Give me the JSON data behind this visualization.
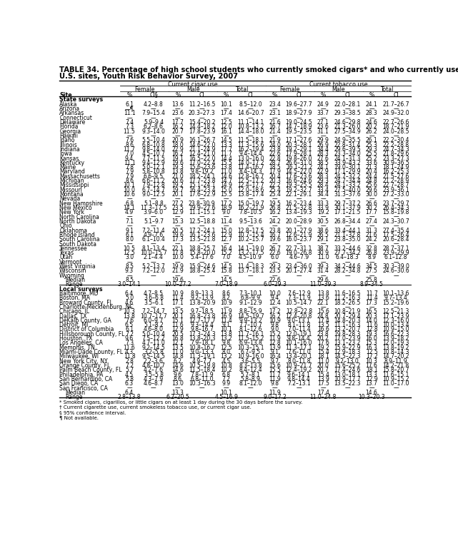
{
  "title_line1": "TABLE 34. Percentage of high school students who currently smoked cigars* and who currently used tobacco,† by sex — selected",
  "title_line2": "U.S. sites, Youth Risk Behavior Survey, 2007",
  "col_headers": {
    "cigar": "Current cigar use",
    "tobacco": "Current tobacco use"
  },
  "sub_headers": [
    "Female",
    "Male",
    "Total",
    "Female",
    "Male",
    "Total"
  ],
  "col_labels": [
    "Site",
    "%",
    "CI§",
    "%",
    "CI",
    "%",
    "CI",
    "%",
    "CI",
    "%",
    "CI",
    "%",
    "CI"
  ],
  "sections": [
    {
      "name": "State surveys",
      "rows": [
        [
          "Alaska",
          "6.1",
          "4.2–8.8",
          "13.6",
          "11.2–16.5",
          "10.1",
          "8.5–12.0",
          "23.4",
          "19.6–27.7",
          "24.9",
          "22.0–28.1",
          "24.1",
          "21.7–26.7"
        ],
        [
          "Arizona",
          "—¶",
          "—",
          "—",
          "—",
          "—",
          "—",
          "—",
          "—",
          "—",
          "—",
          "—",
          "—"
        ],
        [
          "Arkansas",
          "11.1",
          "7.9–15.4",
          "23.6",
          "20.3–27.3",
          "17.4",
          "14.6–20.7",
          "23.1",
          "18.9–27.9",
          "33.7",
          "29.3–38.5",
          "28.3",
          "24.9–32.0"
        ],
        [
          "Connecticut",
          "—",
          "—",
          "—",
          "—",
          "—",
          "—",
          "—",
          "—",
          "—",
          "—",
          "—",
          "—"
        ],
        [
          "Delaware",
          "7.4",
          "5.9–9.4",
          "17.7",
          "15.4–20.2",
          "12.5",
          "11.1–14.1",
          "21.6",
          "19.0–24.5",
          "27.1",
          "24.6–29.8",
          "24.6",
          "22.7–26.6"
        ],
        [
          "Florida",
          "7.3",
          "6.2–8.6",
          "16.2",
          "14.4–18.2",
          "12.0",
          "10.8–13.2",
          "16.7",
          "14.7–18.9",
          "23.6",
          "21.3–26.0",
          "20.2",
          "18.7–21.9"
        ],
        [
          "Georgia",
          "11.5",
          "9.3–14.0",
          "20.7",
          "17.8–23.9",
          "16.1",
          "14.4–18.0",
          "21.4",
          "19.5–23.5",
          "31.1",
          "27.5–34.9",
          "26.2",
          "24.0–28.5"
        ],
        [
          "Hawaii",
          "—",
          "—",
          "—",
          "—",
          "—",
          "—",
          "—",
          "—",
          "—",
          "—",
          "—",
          "—"
        ],
        [
          "Idaho",
          "7.6",
          "5.5–10.4",
          "20.9",
          "16.1–26.7",
          "14.5",
          "11.5–18.1",
          "21.9",
          "17.1–27.6",
          "29.9",
          "24.9–35.5",
          "26.1",
          "22.2–30.4"
        ],
        [
          "Illinois",
          "8.6",
          "6.8–10.8",
          "18.0",
          "14.6–22.0",
          "13.3",
          "11.3–15.6",
          "24.0",
          "20.3–28.1",
          "26.9",
          "22.8–31.4",
          "25.3",
          "22.2–28.8"
        ],
        [
          "Indiana",
          "11.7",
          "9.8–14.0",
          "22.9",
          "21.1–24.9",
          "17.7",
          "16.2–19.4",
          "23.8",
          "19.2–29.1",
          "34.4",
          "29.6–39.5",
          "29.3",
          "24.7–34.3"
        ],
        [
          "Iowa",
          "7.0",
          "4.5–10.7",
          "16.2",
          "12.4–21.0",
          "11.7",
          "9.4–14.4",
          "22.6",
          "17.9–28.1",
          "28.3",
          "23.3–34.0",
          "25.5",
          "21.8–29.6"
        ],
        [
          "Kansas",
          "9.4",
          "7.7–11.5",
          "19.1",
          "16.5–22.0",
          "14.4",
          "13.0–16.0",
          "22.8",
          "19.8–26.0",
          "27.6",
          "24.1–31.3",
          "25.2",
          "23.3–27.3"
        ],
        [
          "Kentucky",
          "11.1",
          "9.4–12.9",
          "19.6",
          "17.0–22.4",
          "15.5",
          "14.0–17.2",
          "28.7",
          "26.6–31.0",
          "38.5",
          "33.9–43.2",
          "33.6",
          "30.9–36.5"
        ],
        [
          "Maine",
          "7.8",
          "5.0–12.1",
          "19.3",
          "15.6–23.6",
          "13.8",
          "11.4–16.7",
          "18.5",
          "16.1–21.2",
          "24.1",
          "19.0–30.1",
          "21.3",
          "18.1–24.9"
        ],
        [
          "Maryland",
          "7.9",
          "5.8–10.8",
          "13.8",
          "9.8–19.2",
          "11.0",
          "8.4–14.3",
          "17.9",
          "14.5–22.0",
          "22.9",
          "17.1–29.9",
          "20.4",
          "16.2–25.3"
        ],
        [
          "Massachusetts",
          "7.9",
          "6.6–9.5",
          "21.0",
          "18.2–24.1",
          "14.6",
          "12.8–16.7",
          "20.4",
          "17.6–23.6",
          "28.3",
          "24.7–32.2",
          "24.4",
          "21.5–27.6"
        ],
        [
          "Michigan",
          "8.6",
          "6.6–11.2",
          "20.6",
          "17.7–23.8",
          "14.7",
          "12.5–17.2",
          "20.3",
          "16.6–24.6",
          "29.3",
          "24.7–34.4",
          "24.8",
          "21.2–28.9"
        ],
        [
          "Mississippi",
          "10.1",
          "7.9–12.8",
          "19.2",
          "15.1–24.1",
          "14.9",
          "12.4–17.7",
          "22.2",
          "19.3–25.5",
          "28.4",
          "24.1–33.2",
          "25.6",
          "22.7–28.7"
        ],
        [
          "Missouri",
          "10.0",
          "6.7–14.7",
          "19.7",
          "16.4–23.4",
          "15.0",
          "12.0–18.6",
          "25.4",
          "19.2–32.7",
          "33.4",
          "27.5–40.0",
          "29.6",
          "23.9–36.1"
        ],
        [
          "Montana",
          "10.6",
          "9.0–12.5",
          "20.1",
          "17.6–22.9",
          "15.5",
          "13.8–17.4",
          "25.4",
          "22.1–29.1",
          "34.4",
          "31.3–37.6",
          "30.0",
          "27.2–33.0"
        ],
        [
          "Nevada",
          "—",
          "—",
          "—",
          "—",
          "—",
          "—",
          "—",
          "—",
          "—",
          "—",
          "—",
          "—"
        ],
        [
          "New Hampshire",
          "6.8",
          "5.1–8.8",
          "27.2",
          "23.8–30.9",
          "17.2",
          "15.0–19.7",
          "19.5",
          "16.2–23.4",
          "33.3",
          "29.7–37.2",
          "26.6",
          "23.7–29.7"
        ],
        [
          "New Mexico",
          "14.1",
          "11.3–17.5",
          "23.5",
          "19.9–27.6",
          "18.9",
          "16.2–21.9",
          "26.8",
          "21.5–32.8",
          "33.9",
          "30.1–37.9",
          "30.2",
          "26.4–34.3"
        ],
        [
          "New York",
          "4.9",
          "3.9–6.0",
          "12.9",
          "11.1–15.1",
          "9.0",
          "7.8–10.5",
          "16.2",
          "13.4–19.3",
          "19.2",
          "17.1–21.5",
          "17.7",
          "15.8–19.8"
        ],
        [
          "North Carolina",
          "—",
          "—",
          "—",
          "—",
          "—",
          "—",
          "—",
          "—",
          "—",
          "—",
          "—",
          "—"
        ],
        [
          "North Dakota",
          "7.1",
          "5.1–9.7",
          "15.3",
          "12.5–18.8",
          "11.4",
          "9.5–13.6",
          "24.2",
          "20.0–28.9",
          "30.5",
          "26.8–34.4",
          "27.4",
          "24.3–30.7"
        ],
        [
          "Ohio",
          "—",
          "—",
          "—",
          "—",
          "—",
          "—",
          "—",
          "—",
          "—",
          "—",
          "—",
          "—"
        ],
        [
          "Oklahoma",
          "9.1",
          "7.2–11.4",
          "20.5",
          "17.2–24.1",
          "15.0",
          "12.8–17.5",
          "23.8",
          "20.1–27.9",
          "38.6",
          "33.4–44.1",
          "31.3",
          "27.4–35.4"
        ],
        [
          "Rhode Island",
          "6.1",
          "4.9–7.6",
          "19.6",
          "16.1–23.6",
          "12.9",
          "10.7–15.4",
          "16.7",
          "12.6–21.9",
          "26.5",
          "21.1–32.8",
          "21.6",
          "17.5–26.4"
        ],
        [
          "South Carolina",
          "8.0",
          "6.1–10.4",
          "17.3",
          "13.5–21.8",
          "12.7",
          "10.2–15.7",
          "19.6",
          "16.0–23.7",
          "29.1",
          "23.8–35.0",
          "24.2",
          "20.6–28.4"
        ],
        [
          "South Dakota",
          "—",
          "—",
          "—",
          "—",
          "—",
          "—",
          "—",
          "—",
          "—",
          "—",
          "—",
          "—"
        ],
        [
          "Tennessee",
          "10.5",
          "8.1–13.4",
          "22.1",
          "18.8–25.7",
          "16.4",
          "14.1–19.0",
          "26.7",
          "22.7–31.1",
          "38.7",
          "33.2–44.6",
          "32.8",
          "28.7–37.1"
        ],
        [
          "Texas",
          "12.5",
          "10.0–15.7",
          "17.8",
          "15.8–20.0",
          "15.2",
          "13.2–17.5",
          "22.6",
          "19.0–26.8",
          "30.9",
          "27.7–34.2",
          "26.8",
          "23.9–29.9"
        ],
        [
          "Utah",
          "3.0",
          "2.1–4.4",
          "10.0",
          "5.4–17.6",
          "7.0",
          "4.5–10.9",
          "6.0",
          "4.6–7.9",
          "11.0",
          "6.4–18.3",
          "8.9",
          "6.1–12.8"
        ],
        [
          "Vermont",
          "—",
          "—",
          "—",
          "—",
          "—",
          "—",
          "—",
          "—",
          "—",
          "—",
          "—",
          "—"
        ],
        [
          "West Virginia",
          "8.5",
          "5.2–13.7",
          "19.9",
          "15.9–24.6",
          "14.5",
          "11.4–18.3",
          "29.3",
          "23.4–36.0",
          "39.3",
          "34.2–44.6",
          "34.5",
          "30.3–39.0"
        ],
        [
          "Wisconsin",
          "9.3",
          "7.2–12.0",
          "21.9",
          "18.8–25.4",
          "15.8",
          "13.7–18.1",
          "23.5",
          "20.1–27.4",
          "31.4",
          "28.2–34.8",
          "27.5",
          "24.6–30.6"
        ],
        [
          "Wyoming",
          "—",
          "—",
          "—",
          "—",
          "—",
          "—",
          "—",
          "—",
          "—",
          "—",
          "—",
          "—"
        ],
        [
          "Median",
          "8.5",
          "",
          "19.6",
          "",
          "14.5",
          "",
          "22.6",
          "",
          "29.6",
          "",
          "25.8",
          ""
        ],
        [
          "Range",
          "3.0–14.1",
          "",
          "10.0–27.2",
          "",
          "7.0–18.9",
          "",
          "6.0–29.3",
          "",
          "11.0–39.3",
          "",
          "8.9–34.5",
          ""
        ]
      ]
    },
    {
      "name": "Local surveys",
      "rows": [
        [
          "Baltimore, MD",
          "6.4",
          "4.7–8.5",
          "10.9",
          "8.9–13.3",
          "8.6",
          "7.3–10.1",
          "10.0",
          "7.6–12.9",
          "13.8",
          "11.6–16.5",
          "11.7",
          "10.1–13.6"
        ],
        [
          "Boston, MA",
          "5.0",
          "3.6–6.8",
          "11.4",
          "9.2–13.9",
          "8.2",
          "6.8–9.9",
          "9.4",
          "7.3–11.9",
          "13.6",
          "11.2–16.3",
          "11.4",
          "9.7–13.4"
        ],
        [
          "Broward County, FL",
          "4.6",
          "3.5–6.1",
          "17.1",
          "13.8–20.9",
          "10.9",
          "9.1–12.9",
          "12.4",
          "10.5–14.7",
          "22.1",
          "18.2–26.5",
          "17.3",
          "15.2–19.6"
        ],
        [
          "Charlotte-Mecklenburg, NC",
          "—",
          "—",
          "—",
          "—",
          "—",
          "—",
          "—",
          "—",
          "—",
          "—",
          "—",
          "—"
        ],
        [
          "Chicago, IL",
          "10.3",
          "7.2–14.7",
          "13.5",
          "9.7–18.5",
          "11.9",
          "8.8–15.9",
          "17.2",
          "12.8–22.8",
          "15.6",
          "10.8–21.9",
          "16.5",
          "12.5–21.3"
        ],
        [
          "Dallas, TX",
          "13.8",
          "10.7–17.7",
          "20.1",
          "16.8–23.8",
          "16.9",
          "14.5–19.7",
          "16.2",
          "12.4–20.8",
          "24.8",
          "20.7–29.4",
          "20.3",
          "17.1–23.9"
        ],
        [
          "DeKalb County, GA",
          "7.6",
          "6.0–9.7",
          "15.1",
          "12.7–17.7",
          "11.4",
          "9.9–13.2",
          "10.9",
          "9.0–13.1",
          "17.4",
          "14.8–20.3",
          "14.0",
          "12.3–16.0"
        ],
        [
          "Detroit, MI",
          "6.5",
          "5.1–8.2",
          "11.6",
          "9.3–14.4",
          "9.1",
          "7.7–10.7",
          "9.8",
          "8.1–11.8",
          "13.5",
          "11.1–16.3",
          "11.6",
          "10.0–13.4"
        ],
        [
          "District of Columbia",
          "6.1",
          "4.6–8.0",
          "12.9",
          "9.8–16.7",
          "10.1",
          "8.1–12.6",
          "9.0",
          "7.0–11.4",
          "16.6",
          "13.2–20.7",
          "12.8",
          "10.9–15.0"
        ],
        [
          "Hillsborough County, FL",
          "7.2",
          "5.0–10.4",
          "20.5",
          "17.3–24.3",
          "13.8",
          "11.7–16.1",
          "15.2",
          "12.0–19.1",
          "23.8",
          "19.8–28.3",
          "19.3",
          "16.6–22.3"
        ],
        [
          "Houston, TX",
          "9.6",
          "7.5–12.2",
          "16.8",
          "13.8–20.3",
          "13.2",
          "11.5–15.2",
          "11.9",
          "9.8–14.4",
          "20.2",
          "17.0–23.9",
          "16.0",
          "13.9–18.2"
        ],
        [
          "Los Angeles, CA",
          "7.3",
          "4.7–11.0",
          "12.1",
          "7.9–18.1",
          "9.8",
          "6.9–13.8",
          "12.8",
          "10.1–16.0",
          "17.6",
          "13.1–23.2",
          "15.3",
          "12.0–19.3"
        ],
        [
          "Memphis, TN",
          "11.6",
          "9.2–14.5",
          "13.5",
          "10.8–16.7",
          "12.5",
          "10.3–15.1",
          "13.9",
          "11.3–17.1",
          "19.2",
          "15.9–22.9",
          "16.3",
          "13.8–19.2"
        ],
        [
          "Miami-Dade County, FL",
          "4.3",
          "3.2–5.8",
          "11.0",
          "9.0–13.3",
          "8.0",
          "6.7–9.5",
          "9.1",
          "7.6–11.0",
          "15.4",
          "12.9–18.3",
          "12.5",
          "10.8–14.3"
        ],
        [
          "Milwaukee, WI",
          "11.8",
          "9.5–14.5",
          "14.8",
          "11.3–19.1",
          "13.2",
          "10.9–16.0",
          "16.4",
          "13.4–20.1",
          "18.1",
          "14.5–22.3",
          "17.2",
          "14.7–20.2"
        ],
        [
          "New York City, NY",
          "2.8",
          "2.2–3.6",
          "6.2",
          "4.9–7.7",
          "4.5",
          "3.6–5.5",
          "9.7",
          "8.0–11.8",
          "11.0",
          "9.2–13.0",
          "10.3",
          "8.9–11.9"
        ],
        [
          "Orange County, FL",
          "7.2",
          "4.8–10.7",
          "14.6",
          "10.5–19.8",
          "10.8",
          "8.3–13.8",
          "15.6",
          "10.9–21.7",
          "20.0",
          "15.6–25.2",
          "17.6",
          "14.2–21.8"
        ],
        [
          "Palm Beach County, FL",
          "5.7",
          "4.2–7.6",
          "14.6",
          "11.5–18.4",
          "10.2",
          "8.4–12.4",
          "15.5",
          "12.4–19.2",
          "20.7",
          "17.4–24.6",
          "18.1",
          "15.8–20.7"
        ],
        [
          "Philadelphia, PA",
          "4.5",
          "3.5–5.8",
          "9.6",
          "7.8–11.9",
          "6.8",
          "5.7–8.1",
          "11.7",
          "9.6–14.1",
          "15.4",
          "13.0–18.1",
          "13.3",
          "11.6–15.1"
        ],
        [
          "San Bernardino, CA",
          "5.8",
          "4.3–7.9",
          "8.6",
          "6.8–11.0",
          "7.2",
          "5.8–8.9",
          "11.9",
          "9.8–14.4",
          "13.9",
          "10.9–17.7",
          "12.9",
          "10.9–15.2"
        ],
        [
          "San Diego, CA",
          "6.3",
          "4.6–8.7",
          "13.0",
          "10.3–16.3",
          "9.9",
          "8.1–12.0",
          "9.8",
          "7.2–13.1",
          "17.5",
          "13.5–22.3",
          "13.7",
          "11.0–17.0"
        ],
        [
          "San Francisco, CA",
          "—",
          "—",
          "—",
          "—",
          "—",
          "—",
          "—",
          "—",
          "—",
          "—",
          "—",
          "—"
        ],
        [
          "Median",
          "6.4",
          "",
          "13.3",
          "",
          "10.1",
          "",
          "11.9",
          "",
          "17.4",
          "",
          "14.6",
          ""
        ],
        [
          "Range",
          "2.8–13.8",
          "",
          "6.2–20.5",
          "",
          "4.5–16.9",
          "",
          "9.0–17.2",
          "",
          "11.0–24.8",
          "",
          "10.3–20.3",
          ""
        ]
      ]
    }
  ],
  "footnotes": [
    "* Smoked cigars, cigarillos, or little cigars on at least 1 day during the 30 days before the survey.",
    "† Current cigarette use, current smokeless tobacco use, or current cigar use.",
    "§ 95% confidence interval.",
    "¶ Not available."
  ],
  "bg_color": "#ffffff",
  "font_size": 5.5,
  "title_font_size": 7.2
}
